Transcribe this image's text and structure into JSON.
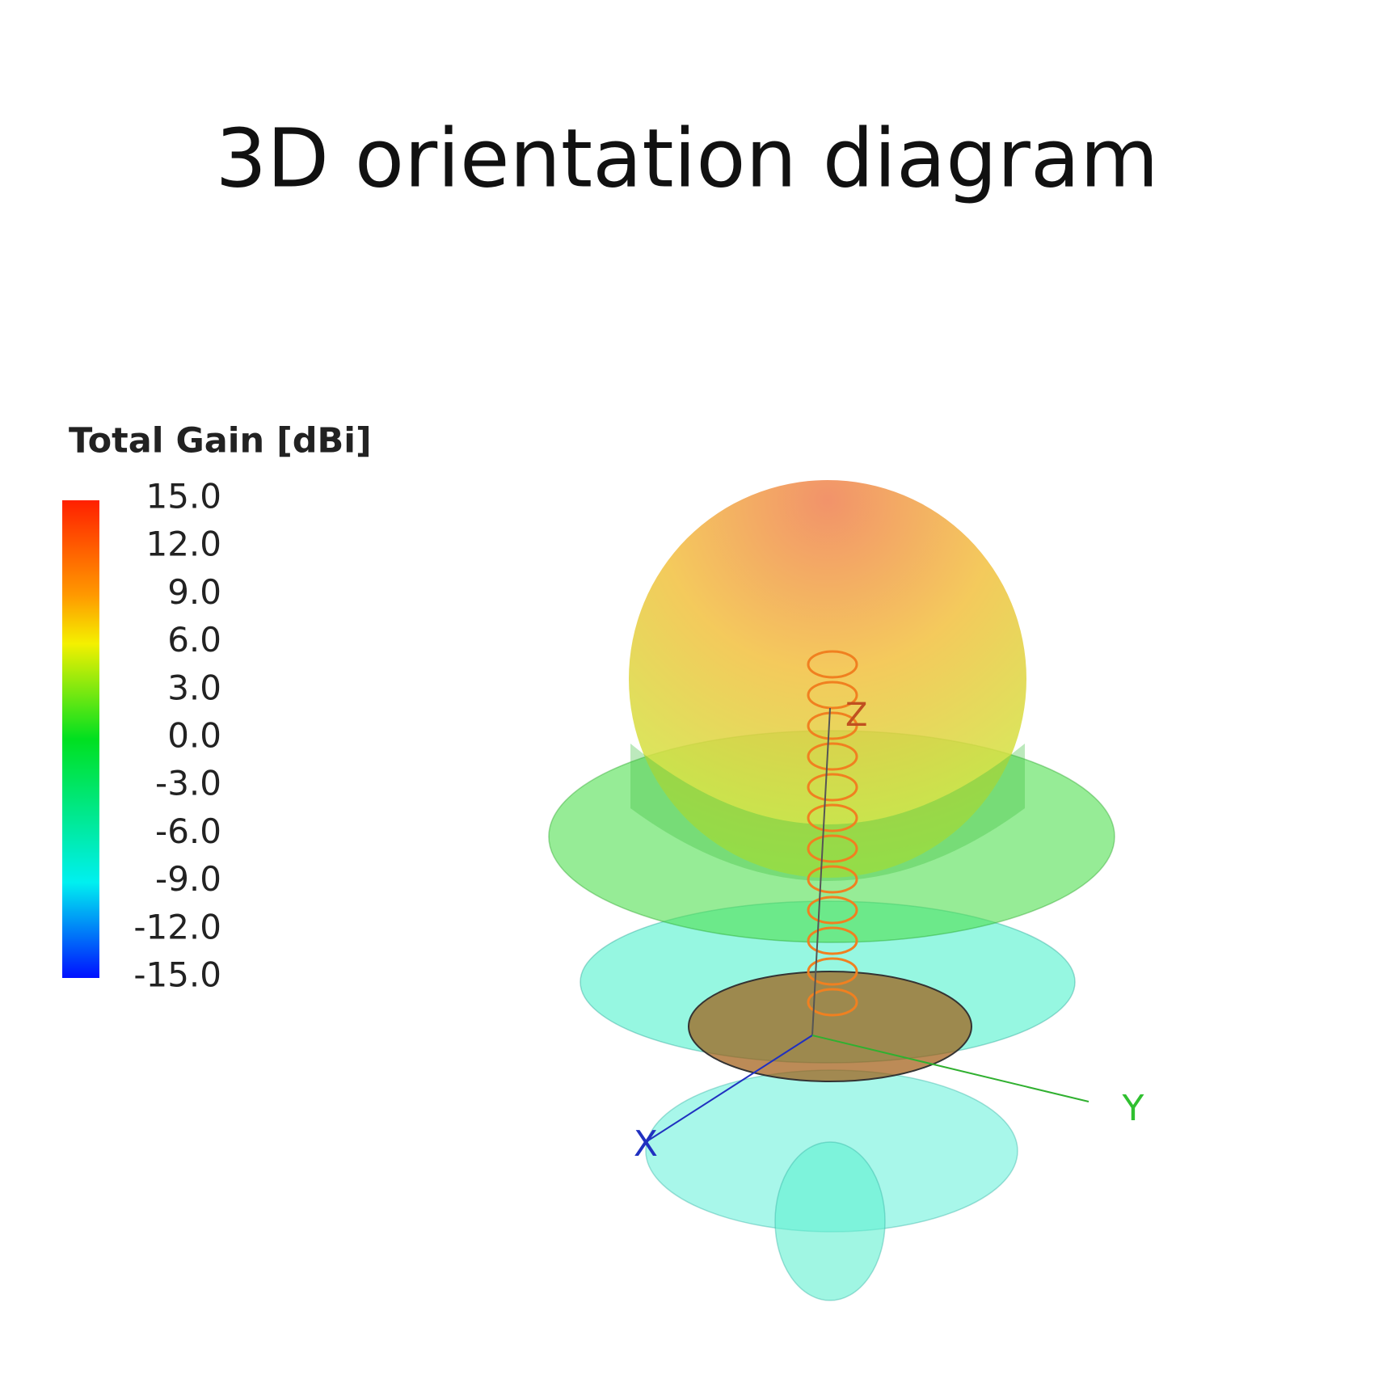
{
  "title": "3D orientation diagram",
  "colorbar": {
    "title": "Total Gain [dBi]",
    "ticks": [
      "15.0",
      "12.0",
      "9.0",
      "6.0",
      "3.0",
      "0.0",
      "-3.0",
      "-6.0",
      "-9.0",
      "-12.0",
      "-15.0"
    ]
  },
  "axes": {
    "x": "X",
    "y": "Y",
    "z": "Z"
  }
}
